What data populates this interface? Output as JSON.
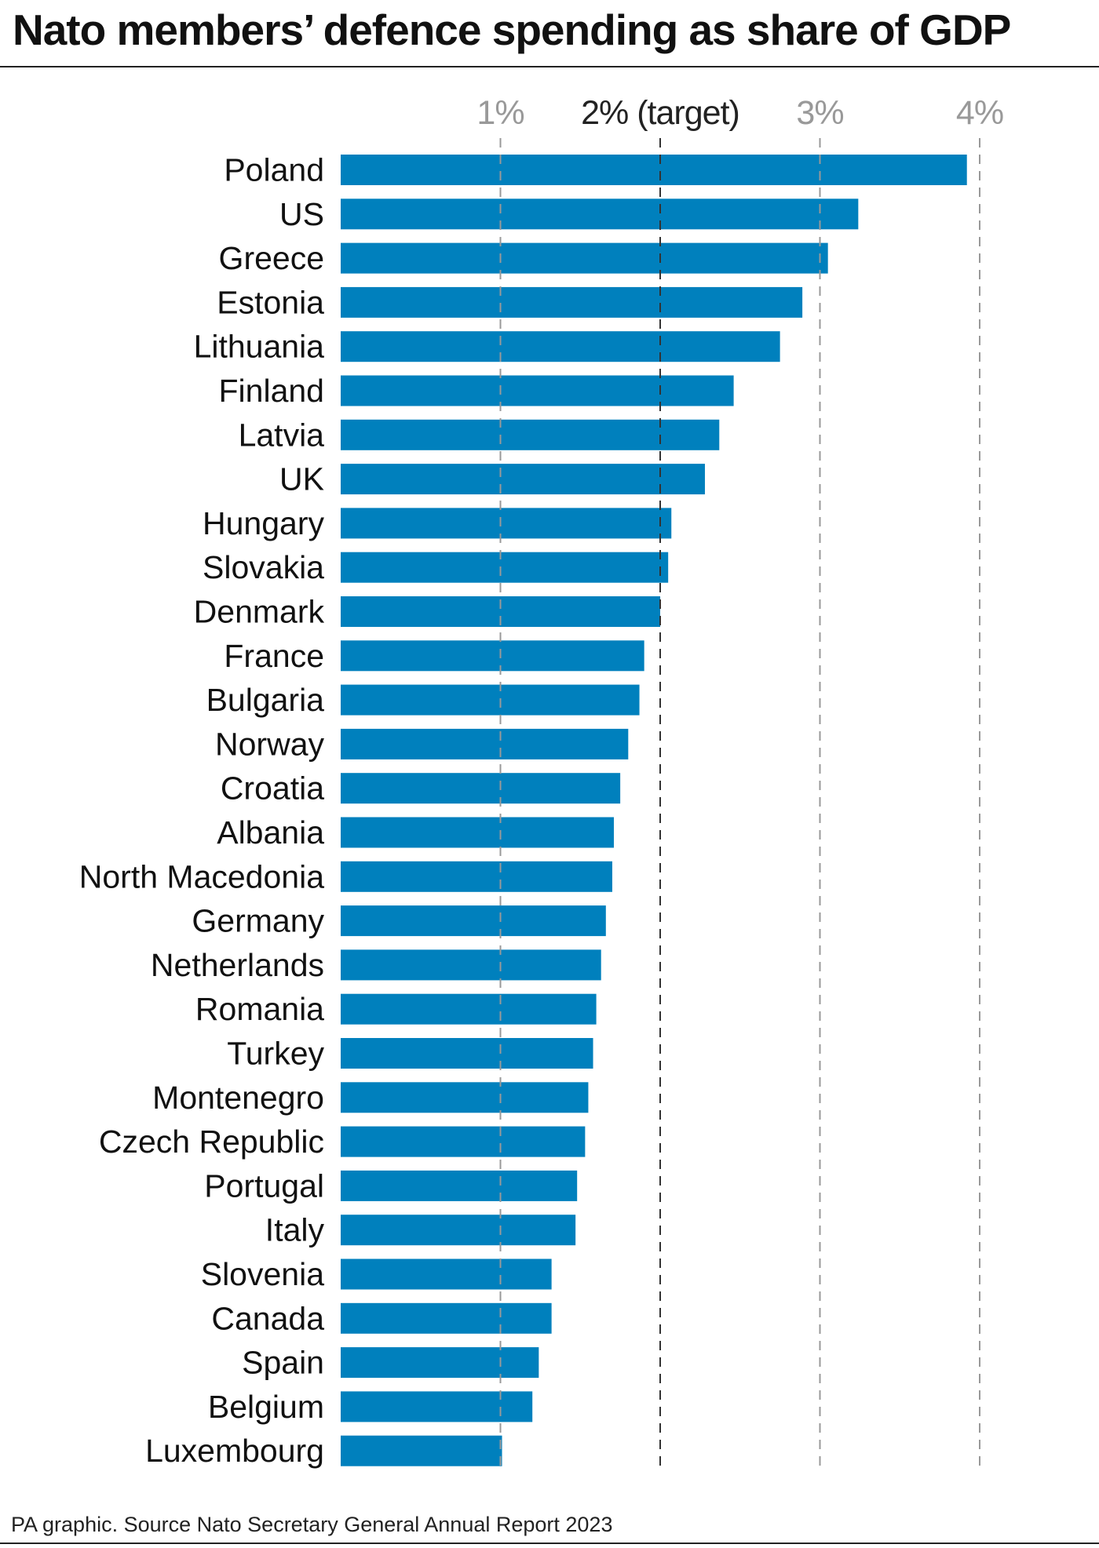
{
  "chart_data": {
    "type": "bar",
    "orientation": "horizontal",
    "title": "Nato members’ defence spending as share of GDP",
    "source": "PA graphic. Source Nato Secretary General Annual Report 2023",
    "xlim": [
      0,
      4.2
    ],
    "ticks": [
      {
        "value": 1,
        "label": "1%",
        "highlight": false
      },
      {
        "value": 2,
        "label": "2% (target)",
        "highlight": true
      },
      {
        "value": 3,
        "label": "3%",
        "highlight": false
      },
      {
        "value": 4,
        "label": "4%",
        "highlight": false
      }
    ],
    "grid": true,
    "bar_color": "#0080bd",
    "categories": [
      "Poland",
      "US",
      "Greece",
      "Estonia",
      "Lithuania",
      "Finland",
      "Latvia",
      "UK",
      "Hungary",
      "Slovakia",
      "Denmark",
      "France",
      "Bulgaria",
      "Norway",
      "Croatia",
      "Albania",
      "North Macedonia",
      "Germany",
      "Netherlands",
      "Romania",
      "Turkey",
      "Montenegro",
      "Czech Republic",
      "Portugal",
      "Italy",
      "Slovenia",
      "Canada",
      "Spain",
      "Belgium",
      "Luxembourg"
    ],
    "values": [
      3.92,
      3.24,
      3.05,
      2.89,
      2.75,
      2.46,
      2.37,
      2.28,
      2.07,
      2.05,
      2.0,
      1.9,
      1.87,
      1.8,
      1.75,
      1.71,
      1.7,
      1.66,
      1.63,
      1.6,
      1.58,
      1.55,
      1.53,
      1.48,
      1.47,
      1.32,
      1.32,
      1.24,
      1.2,
      1.01
    ]
  }
}
